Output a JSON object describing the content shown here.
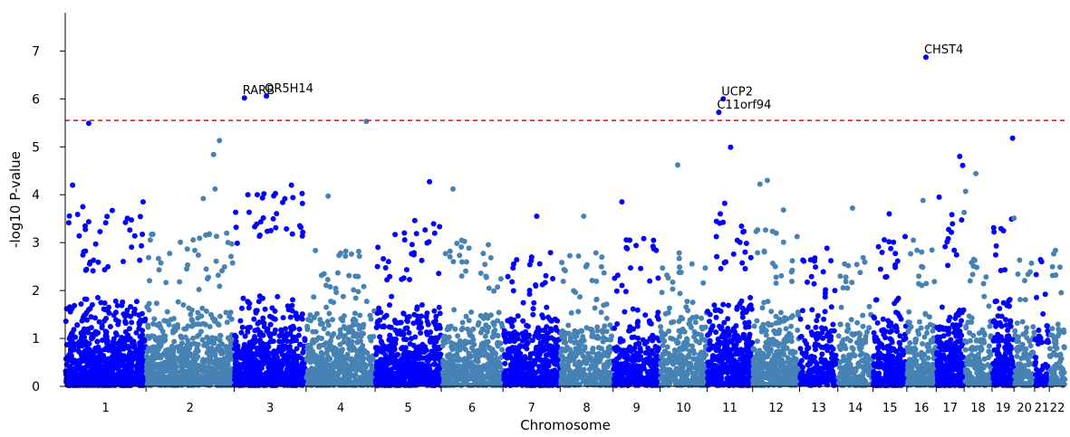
{
  "chart_data": {
    "type": "scatter",
    "subtype": "manhattan",
    "title": "",
    "xlabel": "Chromosome",
    "ylabel": "-log10 P-value",
    "ylim": [
      0,
      7.8
    ],
    "yticks": [
      0,
      1,
      2,
      3,
      4,
      5,
      6,
      7
    ],
    "grid": false,
    "legend": "none",
    "threshold": 5.55,
    "colors": {
      "odd_chromosome": "#0000ff",
      "even_chromosome": "#4682b4",
      "threshold_line": "#ff0000"
    },
    "chromosomes": [
      {
        "label": "1",
        "start": 0.0,
        "end": 5.5,
        "max": 2.4,
        "density": 1.0,
        "odd": true
      },
      {
        "label": "2",
        "start": 5.5,
        "end": 11.5,
        "max": 2.0,
        "density": 0.8,
        "odd": false
      },
      {
        "label": "3",
        "start": 11.5,
        "end": 16.4,
        "max": 2.9,
        "density": 0.9,
        "odd": true
      },
      {
        "label": "4",
        "start": 16.4,
        "end": 21.1,
        "max": 1.7,
        "density": 0.7,
        "odd": false
      },
      {
        "label": "5",
        "start": 21.1,
        "end": 25.6,
        "max": 2.2,
        "density": 0.9,
        "odd": true
      },
      {
        "label": "6",
        "start": 25.6,
        "end": 29.8,
        "max": 1.9,
        "density": 0.6,
        "odd": false
      },
      {
        "label": "7",
        "start": 29.8,
        "end": 33.7,
        "max": 1.6,
        "density": 0.7,
        "odd": true
      },
      {
        "label": "8",
        "start": 33.7,
        "end": 37.3,
        "max": 1.6,
        "density": 0.6,
        "odd": false
      },
      {
        "label": "9",
        "start": 37.3,
        "end": 40.5,
        "max": 1.9,
        "density": 0.6,
        "odd": true
      },
      {
        "label": "10",
        "start": 40.5,
        "end": 43.7,
        "max": 1.6,
        "density": 0.6,
        "odd": false
      },
      {
        "label": "11",
        "start": 43.7,
        "end": 46.8,
        "max": 2.3,
        "density": 0.9,
        "odd": true
      },
      {
        "label": "12",
        "start": 46.8,
        "end": 50.0,
        "max": 2.1,
        "density": 0.7,
        "odd": false
      },
      {
        "label": "13",
        "start": 50.0,
        "end": 52.6,
        "max": 1.8,
        "density": 0.5,
        "odd": true
      },
      {
        "label": "14",
        "start": 52.6,
        "end": 55.0,
        "max": 1.5,
        "density": 0.5,
        "odd": false
      },
      {
        "label": "15",
        "start": 55.0,
        "end": 57.3,
        "max": 2.0,
        "density": 0.8,
        "odd": true
      },
      {
        "label": "16",
        "start": 57.3,
        "end": 59.3,
        "max": 1.9,
        "density": 0.7,
        "odd": false
      },
      {
        "label": "17",
        "start": 59.3,
        "end": 61.2,
        "max": 2.5,
        "density": 1.0,
        "odd": true
      },
      {
        "label": "18",
        "start": 61.2,
        "end": 63.1,
        "max": 1.5,
        "density": 0.5,
        "odd": false
      },
      {
        "label": "19",
        "start": 63.1,
        "end": 64.6,
        "max": 2.4,
        "density": 0.9,
        "odd": true
      },
      {
        "label": "20",
        "start": 64.6,
        "end": 66.0,
        "max": 1.7,
        "density": 0.5,
        "odd": false
      },
      {
        "label": "21",
        "start": 66.0,
        "end": 67.0,
        "max": 1.5,
        "density": 0.4,
        "odd": true
      },
      {
        "label": "22",
        "start": 67.0,
        "end": 68.1,
        "max": 1.7,
        "density": 0.5,
        "odd": false
      }
    ],
    "annotations": [
      {
        "label": "RARB",
        "x": 12.2,
        "y": 6.02
      },
      {
        "label": "OR5H14",
        "x": 13.7,
        "y": 6.06
      },
      {
        "label": "UCP2",
        "x": 44.8,
        "y": 6.0
      },
      {
        "label": "C11orf94",
        "x": 44.5,
        "y": 5.72
      },
      {
        "label": "CHST4",
        "x": 58.6,
        "y": 6.87
      }
    ],
    "notable_points": [
      {
        "x": 1.6,
        "y": 5.49
      },
      {
        "x": 0.5,
        "y": 4.2
      },
      {
        "x": 1.2,
        "y": 3.75
      },
      {
        "x": 3.2,
        "y": 3.67
      },
      {
        "x": 4.1,
        "y": 3.42
      },
      {
        "x": 5.3,
        "y": 3.85
      },
      {
        "x": 10.5,
        "y": 5.13
      },
      {
        "x": 10.1,
        "y": 4.84
      },
      {
        "x": 10.2,
        "y": 4.12
      },
      {
        "x": 9.4,
        "y": 3.92
      },
      {
        "x": 10.3,
        "y": 3.13
      },
      {
        "x": 15.4,
        "y": 4.2
      },
      {
        "x": 15.5,
        "y": 3.94
      },
      {
        "x": 12.9,
        "y": 3.33
      },
      {
        "x": 14.0,
        "y": 3.25
      },
      {
        "x": 17.9,
        "y": 3.97
      },
      {
        "x": 20.5,
        "y": 5.53
      },
      {
        "x": 24.8,
        "y": 4.27
      },
      {
        "x": 23.8,
        "y": 3.46
      },
      {
        "x": 26.4,
        "y": 4.12
      },
      {
        "x": 32.1,
        "y": 3.55
      },
      {
        "x": 35.3,
        "y": 3.55
      },
      {
        "x": 37.9,
        "y": 3.85
      },
      {
        "x": 41.7,
        "y": 4.62
      },
      {
        "x": 45.3,
        "y": 4.99
      },
      {
        "x": 44.9,
        "y": 3.82
      },
      {
        "x": 44.6,
        "y": 3.6
      },
      {
        "x": 47.8,
        "y": 4.3
      },
      {
        "x": 47.3,
        "y": 4.22
      },
      {
        "x": 48.9,
        "y": 3.68
      },
      {
        "x": 53.6,
        "y": 3.72
      },
      {
        "x": 56.1,
        "y": 3.6
      },
      {
        "x": 58.4,
        "y": 3.88
      },
      {
        "x": 59.5,
        "y": 3.95
      },
      {
        "x": 60.9,
        "y": 4.8
      },
      {
        "x": 61.1,
        "y": 4.61
      },
      {
        "x": 61.3,
        "y": 4.07
      },
      {
        "x": 61.2,
        "y": 3.63
      },
      {
        "x": 62.0,
        "y": 4.44
      },
      {
        "x": 64.5,
        "y": 5.18
      },
      {
        "x": 64.6,
        "y": 3.51
      }
    ]
  }
}
